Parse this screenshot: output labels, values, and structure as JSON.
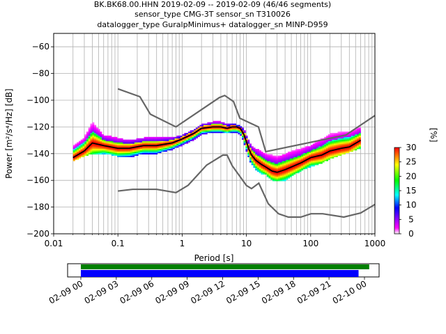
{
  "chart_data": [
    {
      "type": "heatmap",
      "title_lines": [
        "BK.BK68.00.HHN   2019-02-09 -- 2019-02-09  (46/46 segments)",
        "sensor_type CMG-3T sensor_sn T310026",
        "datalogger_type GuralpMinimus+ datalogger_sn MINP-D959"
      ],
      "xlabel": "Period [s]",
      "ylabel": "Power [m²/s⁴/Hz] [dB]",
      "xscale": "log",
      "xlim": [
        0.01,
        1000
      ],
      "ylim": [
        -200,
        -50
      ],
      "x_ticks": [
        0.01,
        0.1,
        1,
        10,
        100,
        1000
      ],
      "x_tick_labels": [
        "0.01",
        "0.1",
        "1",
        "10",
        "100",
        "1000"
      ],
      "y_ticks": [
        -200,
        -180,
        -160,
        -140,
        -120,
        -100,
        -80,
        -60
      ],
      "y_tick_labels": [
        "−200",
        "−180",
        "−160",
        "−140",
        "−120",
        "−100",
        "−80",
        "−60"
      ],
      "grid": true,
      "colorbar": {
        "label": "[%]",
        "min": 0,
        "max": 30,
        "ticks": [
          0,
          5,
          10,
          15,
          20,
          25,
          30
        ],
        "tick_labels": [
          "0",
          "5",
          "10",
          "15",
          "20",
          "25",
          "30"
        ],
        "colormap": [
          "#ffffff",
          "#ff00ff",
          "#0000ff",
          "#00ffff",
          "#00ff00",
          "#ffff00",
          "#ff0000"
        ]
      },
      "mean_curve": {
        "name": "mean",
        "color": "#000000",
        "periods": [
          0.02,
          0.03,
          0.04,
          0.06,
          0.1,
          0.15,
          0.25,
          0.4,
          0.7,
          1.0,
          1.5,
          2.0,
          3.0,
          4.0,
          5.0,
          6.0,
          7.0,
          8.0,
          9.0,
          10.0,
          11.0,
          12.0,
          14.0,
          17.0,
          20.0,
          25.0,
          30.0,
          40.0,
          50.0,
          70.0,
          100.0,
          150.0,
          200.0,
          300.0,
          400.0,
          600.0
        ],
        "values": [
          -143,
          -138,
          -132,
          -134,
          -136,
          -136,
          -134,
          -134,
          -132,
          -129,
          -125,
          -121,
          -120,
          -120,
          -121,
          -120,
          -120,
          -121,
          -125,
          -131,
          -137,
          -141,
          -145,
          -148,
          -150,
          -153,
          -154,
          -152,
          -150,
          -147,
          -143,
          -141,
          -138,
          -136,
          -135,
          -130
        ]
      },
      "density_band": {
        "name": "ppsd-density",
        "periods": [
          0.02,
          0.03,
          0.04,
          0.06,
          0.1,
          0.15,
          0.25,
          0.4,
          0.7,
          1.0,
          1.5,
          2.0,
          3.0,
          4.0,
          5.0,
          6.0,
          7.0,
          8.0,
          9.0,
          10.0,
          11.0,
          12.0,
          14.0,
          17.0,
          20.0,
          25.0,
          30.0,
          40.0,
          50.0,
          70.0,
          100.0,
          150.0,
          200.0,
          300.0,
          400.0,
          600.0
        ],
        "upper": [
          -132,
          -126,
          -116,
          -126,
          -128,
          -130,
          -128,
          -128,
          -128,
          -126,
          -122,
          -118,
          -116,
          -116,
          -118,
          -118,
          -118,
          -119,
          -121,
          -126,
          -130,
          -134,
          -136,
          -138,
          -140,
          -141,
          -142,
          -140,
          -138,
          -136,
          -134,
          -128,
          -124,
          -122,
          -121,
          -120
        ],
        "lower": [
          -146,
          -142,
          -140,
          -140,
          -142,
          -143,
          -140,
          -140,
          -137,
          -134,
          -130,
          -126,
          -124,
          -124,
          -125,
          -124,
          -124,
          -126,
          -131,
          -138,
          -144,
          -148,
          -152,
          -155,
          -156,
          -160,
          -161,
          -160,
          -157,
          -153,
          -150,
          -147,
          -144,
          -141,
          -139,
          -136
        ]
      },
      "noise_models": [
        {
          "name": "new-high-noise-model",
          "color": "#666666",
          "periods": [
            0.1,
            0.22,
            0.32,
            0.8,
            3.8,
            4.6,
            6.3,
            7.9,
            15.4,
            20.0,
            354.8,
            1000.0
          ],
          "values": [
            -91.5,
            -97.4,
            -110.5,
            -120.0,
            -98.0,
            -96.5,
            -101.0,
            -113.5,
            -120.0,
            -138.5,
            -126.0,
            -111.5
          ]
        },
        {
          "name": "new-low-noise-model",
          "color": "#666666",
          "periods": [
            0.1,
            0.17,
            0.4,
            0.8,
            1.24,
            2.4,
            4.3,
            5.0,
            6.0,
            10.0,
            12.0,
            15.6,
            21.9,
            31.6,
            45.0,
            70.0,
            101.0,
            154.0,
            328.0,
            600.0,
            1000.0
          ],
          "values": [
            -168.0,
            -166.7,
            -166.7,
            -169.2,
            -163.7,
            -148.6,
            -141.1,
            -141.1,
            -149.0,
            -163.8,
            -166.2,
            -162.1,
            -177.5,
            -185.0,
            -187.5,
            -187.5,
            -185.0,
            -185.0,
            -187.5,
            -184.4,
            -178.0
          ]
        }
      ]
    },
    {
      "type": "timeline",
      "name": "data-coverage",
      "time_range": [
        "2019-02-09 00:00",
        "2019-02-10 01:30"
      ],
      "tick_labels": [
        "02-09 00",
        "02-09 03",
        "02-09 06",
        "02-09 09",
        "02-09 12",
        "02-09 15",
        "02-09 18",
        "02-09 21",
        "02-10 00"
      ],
      "tick_hours": [
        0,
        3,
        6,
        9,
        12,
        15,
        18,
        21,
        24
      ],
      "series": [
        {
          "name": "available-data",
          "color": "#008000",
          "start_hour": 0,
          "end_hour": 24.4
        },
        {
          "name": "processed-segments",
          "color": "#0000ff",
          "start_hour": 0,
          "end_hour": 23.5
        }
      ]
    }
  ]
}
